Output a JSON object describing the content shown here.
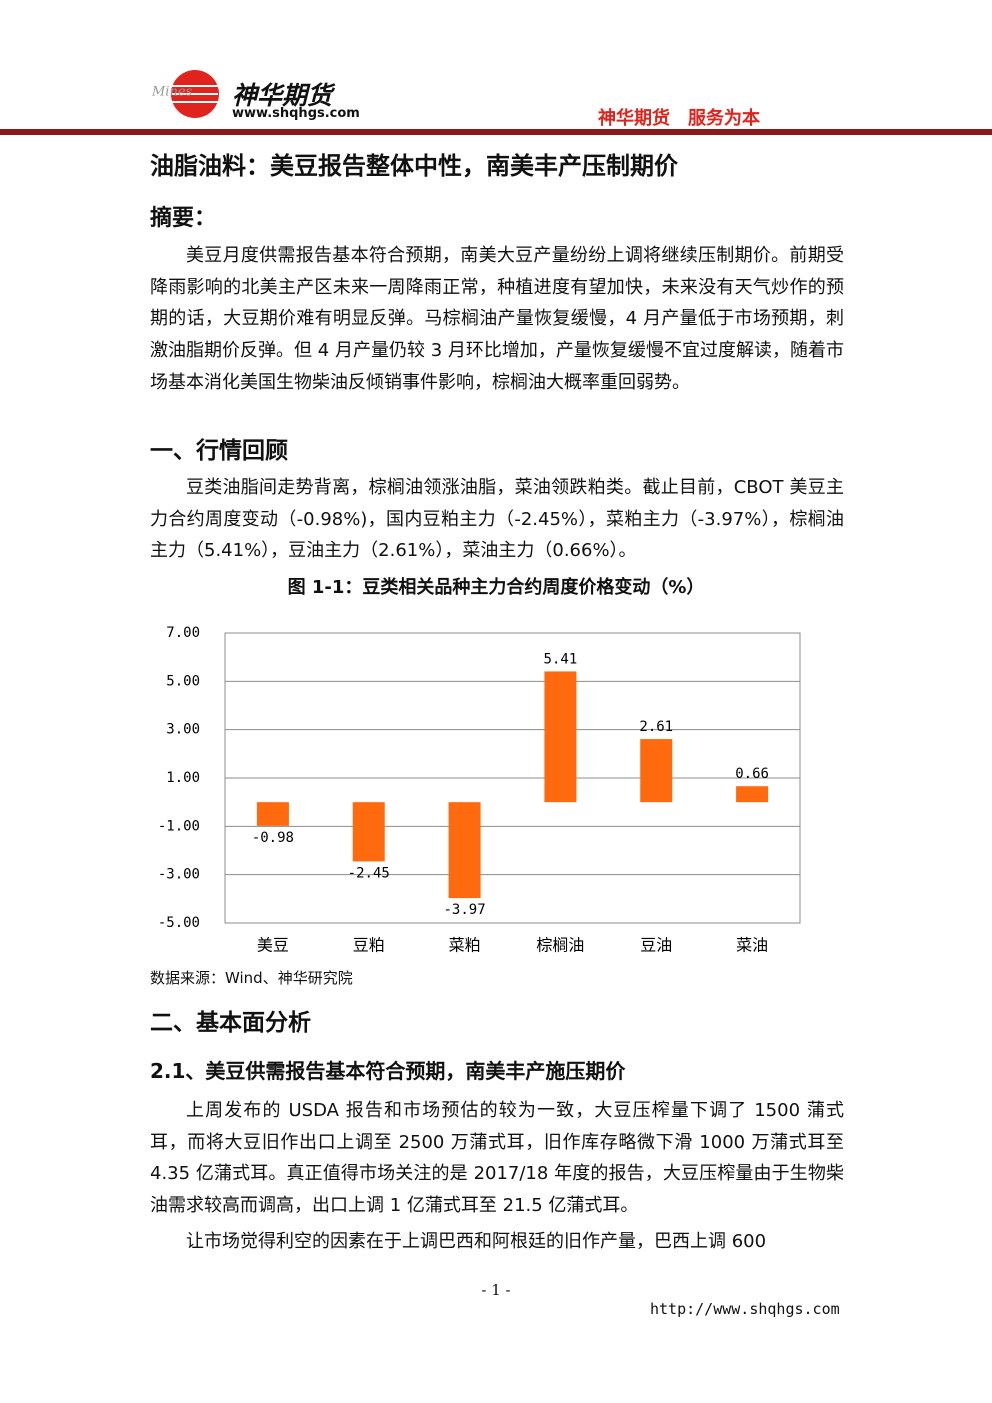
{
  "header": {
    "brand": "神华期货",
    "site": "www.shqhgs.com",
    "slogan": "神华期货　服务为本"
  },
  "title": "油脂油料：美豆报告整体中性，南美丰产压制期价",
  "abstract": {
    "heading": "摘要：",
    "text": "美豆月度供需报告基本符合预期，南美大豆产量纷纷上调将继续压制期价。前期受降雨影响的北美主产区未来一周降雨正常，种植进度有望加快，未来没有天气炒作的预期的话，大豆期价难有明显反弹。马棕榈油产量恢复缓慢，4 月产量低于市场预期，刺激油脂期价反弹。但 4 月产量仍较 3 月环比增加，产量恢复缓慢不宜过度解读，随着市场基本消化美国生物柴油反倾销事件影响，棕榈油大概率重回弱势。"
  },
  "section1": {
    "heading": "一、行情回顾",
    "text": "豆类油脂间走势背离，棕榈油领涨油脂，菜油领跌粕类。截止目前，CBOT 美豆主力合约周度变动（-0.98%)，国内豆粕主力（-2.45%），菜粕主力（-3.97%），棕榈油主力（5.41%），豆油主力（2.61%），菜油主力（0.66%）。",
    "figure_title": "图 1-1：豆类相关品种主力合约周度价格变动（%）",
    "source": "数据来源：Wind、神华研究院"
  },
  "chart_data": {
    "type": "bar",
    "categories": [
      "美豆",
      "豆粕",
      "菜粕",
      "棕榈油",
      "豆油",
      "菜油"
    ],
    "values": [
      -0.98,
      -2.45,
      -3.97,
      5.41,
      2.61,
      0.66
    ],
    "color": "#ff6a0e",
    "ylim": [
      -5,
      7
    ],
    "yticks": [
      {
        "value": 7,
        "label": "7.00"
      },
      {
        "value": 5,
        "label": "5.00"
      },
      {
        "value": 3,
        "label": "3.00"
      },
      {
        "value": 1,
        "label": "1.00"
      },
      {
        "value": -1,
        "label": "-1.00"
      },
      {
        "value": -3,
        "label": "-3.00"
      },
      {
        "value": -5,
        "label": "-5.00"
      }
    ],
    "grid": true
  },
  "section2": {
    "heading": "二、基本面分析",
    "sub_heading": "2.1、美豆供需报告基本符合预期，南美丰产施压期价",
    "paragraphs": [
      "上周发布的 USDA 报告和市场预估的较为一致，大豆压榨量下调了 1500 蒲式耳，而将大豆旧作出口上调至 2500 万蒲式耳，旧作库存略微下滑 1000 万蒲式耳至 4.35 亿蒲式耳。真正值得市场关注的是 2017/18 年度的报告，大豆压榨量由于生物柴油需求较高而调高，出口上调 1 亿蒲式耳至 21.5 亿蒲式耳。",
      "让市场觉得利空的因素在于上调巴西和阿根廷的旧作产量，巴西上调 600"
    ]
  },
  "footer": {
    "page": "- 1 -",
    "url": "http://www.shqhgs.com"
  }
}
